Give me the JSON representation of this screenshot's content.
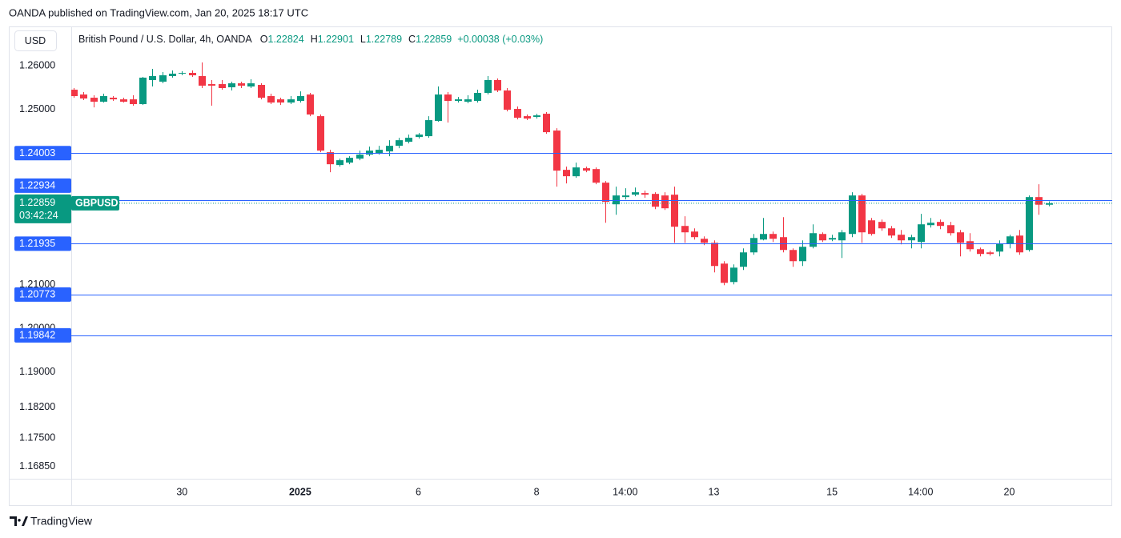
{
  "header": "OANDA published on TradingView.com, Jan 20, 2025 18:17 UTC",
  "chart_data": {
    "type": "candlestick",
    "title": "British Pound / U.S. Dollar, 4h, OANDA",
    "currency": "USD",
    "symbol": "GBPUSD",
    "countdown": "03:42:24",
    "ohlc_letters": [
      "O",
      "H",
      "L",
      "C"
    ],
    "change": "+0.00038 (+0.03%)",
    "up_color": "#089981",
    "down_color": "#f23645",
    "categories": [
      null,
      null,
      null,
      null,
      null,
      null,
      null,
      null,
      null,
      null,
      null,
      "30",
      null,
      null,
      null,
      null,
      null,
      null,
      null,
      null,
      null,
      null,
      null,
      "2025",
      null,
      null,
      null,
      null,
      null,
      null,
      null,
      null,
      null,
      null,
      null,
      "6",
      null,
      null,
      null,
      null,
      null,
      null,
      null,
      null,
      null,
      null,
      null,
      "8",
      null,
      null,
      null,
      null,
      null,
      null,
      null,
      null,
      "14:00",
      null,
      null,
      null,
      null,
      null,
      null,
      null,
      null,
      "13",
      null,
      null,
      null,
      null,
      null,
      null,
      null,
      null,
      null,
      null,
      null,
      "15",
      null,
      null,
      null,
      null,
      null,
      null,
      null,
      null,
      "14:00",
      null,
      null,
      null,
      null,
      null,
      null,
      null,
      null,
      "20",
      null,
      null,
      null,
      null
    ],
    "open": [
      1.25451,
      1.25341,
      1.25268,
      1.25176,
      1.25268,
      1.25231,
      1.25231,
      1.25122,
      1.25671,
      1.25634,
      1.25762,
      1.25817,
      1.25835,
      1.25762,
      1.25579,
      1.25579,
      1.25506,
      1.25597,
      1.25524,
      1.25561,
      1.25305,
      1.25231,
      1.25158,
      1.25195,
      1.25341,
      1.24847,
      1.24024,
      1.23731,
      1.23786,
      1.23877,
      1.23969,
      1.24005,
      1.24042,
      1.2417,
      1.24262,
      1.24371,
      1.2439,
      1.24737,
      1.25341,
      1.25195,
      1.25176,
      1.25195,
      1.25378,
      1.25671,
      1.25433,
      1.25012,
      1.24847,
      1.24829,
      1.24902,
      1.24518,
      1.23621,
      1.23475,
      1.23658,
      1.23639,
      1.23328,
      1.22834,
      1.22999,
      1.23054,
      1.23091,
      1.23072,
      1.23036,
      1.23054,
      1.2234,
      1.22212,
      1.22047,
      1.21956,
      1.2148,
      1.21059,
      1.21407,
      1.21736,
      1.22029,
      1.22157,
      1.22084,
      1.21791,
      1.21535,
      1.21864,
      1.22157,
      1.22029,
      1.22011,
      1.22157,
      1.23036,
      1.22468,
      1.22432,
      1.22285,
      1.22139,
      1.22011,
      1.21974,
      1.22358,
      1.22432,
      1.22358,
      1.22194,
      1.21992,
      1.21809,
      1.21736,
      1.21754,
      1.21937,
      1.2212,
      1.21791,
      1.22999,
      1.22824
    ],
    "high": [
      1.25488,
      1.25396,
      1.25323,
      1.2536,
      1.25305,
      1.25268,
      1.25323,
      1.25744,
      1.25927,
      1.25854,
      1.2589,
      1.25872,
      1.2589,
      1.26073,
      1.25671,
      1.25671,
      1.25634,
      1.25634,
      1.25689,
      1.25597,
      1.2536,
      1.25268,
      1.25305,
      1.25414,
      1.25378,
      1.24884,
      1.24079,
      1.23877,
      1.23932,
      1.2406,
      1.24152,
      1.2417,
      1.24298,
      1.24353,
      1.24426,
      1.24463,
      1.24847,
      1.25524,
      1.25396,
      1.25286,
      1.25323,
      1.25451,
      1.25762,
      1.25707,
      1.25488,
      1.25067,
      1.24884,
      1.24902,
      1.24939,
      1.24573,
      1.23694,
      1.23786,
      1.23694,
      1.23676,
      1.23365,
      1.23237,
      1.23201,
      1.23218,
      1.23146,
      1.23109,
      1.23109,
      1.23237,
      1.2256,
      1.22285,
      1.22102,
      1.22011,
      1.21535,
      1.21462,
      1.21828,
      1.22157,
      1.22523,
      1.22212,
      1.22541,
      1.21828,
      1.22011,
      1.22377,
      1.22194,
      1.22139,
      1.22249,
      1.23109,
      1.23072,
      1.22523,
      1.22486,
      1.2234,
      1.22249,
      1.22139,
      1.22615,
      1.22523,
      1.22486,
      1.22432,
      1.22249,
      1.22175,
      1.21846,
      1.21773,
      1.22011,
      1.22139,
      1.22249,
      1.23036,
      1.23292,
      1.22901
    ],
    "low": [
      1.25268,
      1.25213,
      1.25048,
      1.25158,
      1.25195,
      1.25158,
      1.25085,
      1.25103,
      1.25524,
      1.25597,
      1.25726,
      1.2578,
      1.25744,
      1.25488,
      1.25085,
      1.25451,
      1.25433,
      1.25488,
      1.25488,
      1.25231,
      1.25122,
      1.25103,
      1.25122,
      1.25158,
      1.24847,
      1.24024,
      1.23566,
      1.23694,
      1.23749,
      1.23841,
      1.23932,
      1.23969,
      1.23932,
      1.24115,
      1.24225,
      1.24335,
      1.24353,
      1.24719,
      1.24701,
      1.25158,
      1.2514,
      1.25158,
      1.25341,
      1.25396,
      1.24957,
      1.24774,
      1.24756,
      1.24792,
      1.24445,
      1.23237,
      1.2331,
      1.23438,
      1.23566,
      1.23292,
      1.22413,
      1.22596,
      1.22944,
      1.23017,
      1.22981,
      1.22724,
      1.22706,
      1.21956,
      1.21956,
      1.22029,
      1.21901,
      1.21279,
      1.20986,
      1.21004,
      1.21334,
      1.21681,
      1.22011,
      1.21974,
      1.21736,
      1.21407,
      1.21425,
      1.21828,
      1.21974,
      1.21992,
      1.21608,
      1.22084,
      1.21956,
      1.2212,
      1.2223,
      1.22065,
      1.21919,
      1.21828,
      1.21828,
      1.22303,
      1.22267,
      1.2212,
      1.21645,
      1.21754,
      1.21645,
      1.21663,
      1.21645,
      1.21828,
      1.21681,
      1.21754,
      1.22596,
      1.22789
    ],
    "close": [
      1.25305,
      1.2525,
      1.25176,
      1.25305,
      1.25231,
      1.25176,
      1.25122,
      1.25726,
      1.25762,
      1.2578,
      1.25817,
      1.25835,
      1.2578,
      1.25543,
      1.25543,
      1.25488,
      1.25597,
      1.25543,
      1.25597,
      1.25268,
      1.25158,
      1.25158,
      1.25231,
      1.25305,
      1.24884,
      1.2406,
      1.23749,
      1.23841,
      1.23896,
      1.23969,
      1.2406,
      1.24079,
      1.2417,
      1.24298,
      1.24353,
      1.24426,
      1.24756,
      1.25341,
      1.25195,
      1.25231,
      1.25231,
      1.25378,
      1.25671,
      1.25433,
      1.24993,
      1.2481,
      1.24792,
      1.24865,
      1.24481,
      1.23603,
      1.23475,
      1.23676,
      1.23603,
      1.23328,
      1.22889,
      1.23036,
      1.23036,
      1.23109,
      1.23054,
      1.22779,
      1.22743,
      1.22322,
      1.22194,
      1.22084,
      1.21956,
      1.21425,
      1.21041,
      1.21388,
      1.21736,
      1.22065,
      1.22157,
      1.22047,
      1.21791,
      1.21535,
      1.21864,
      1.22175,
      1.22011,
      1.22065,
      1.22194,
      1.23036,
      1.22194,
      1.22157,
      1.22285,
      1.2212,
      1.22011,
      1.22084,
      1.22377,
      1.22413,
      1.2234,
      1.22175,
      1.21956,
      1.21809,
      1.217,
      1.217,
      1.21937,
      1.22102,
      1.21736,
      1.22999,
      1.22824,
      1.22859
    ],
    "ylim": [
      1.16567,
      1.26896
    ],
    "yticks": [
      {
        "value": 1.26,
        "label": "1.26000"
      },
      {
        "value": 1.25,
        "label": "1.25000"
      },
      {
        "value": 1.21,
        "label": "1.21000"
      },
      {
        "value": 1.2,
        "label": "1.20000"
      },
      {
        "value": 1.19,
        "label": "1.19000"
      },
      {
        "value": 1.182,
        "label": "1.18200"
      },
      {
        "value": 1.175,
        "label": "1.17500"
      },
      {
        "value": 1.1685,
        "label": "1.16850"
      }
    ],
    "grid": false,
    "levels": [
      1.24003,
      1.22934,
      1.21935,
      1.20773,
      1.19842
    ],
    "level_color": "#2962ff"
  },
  "footer": "TradingView"
}
